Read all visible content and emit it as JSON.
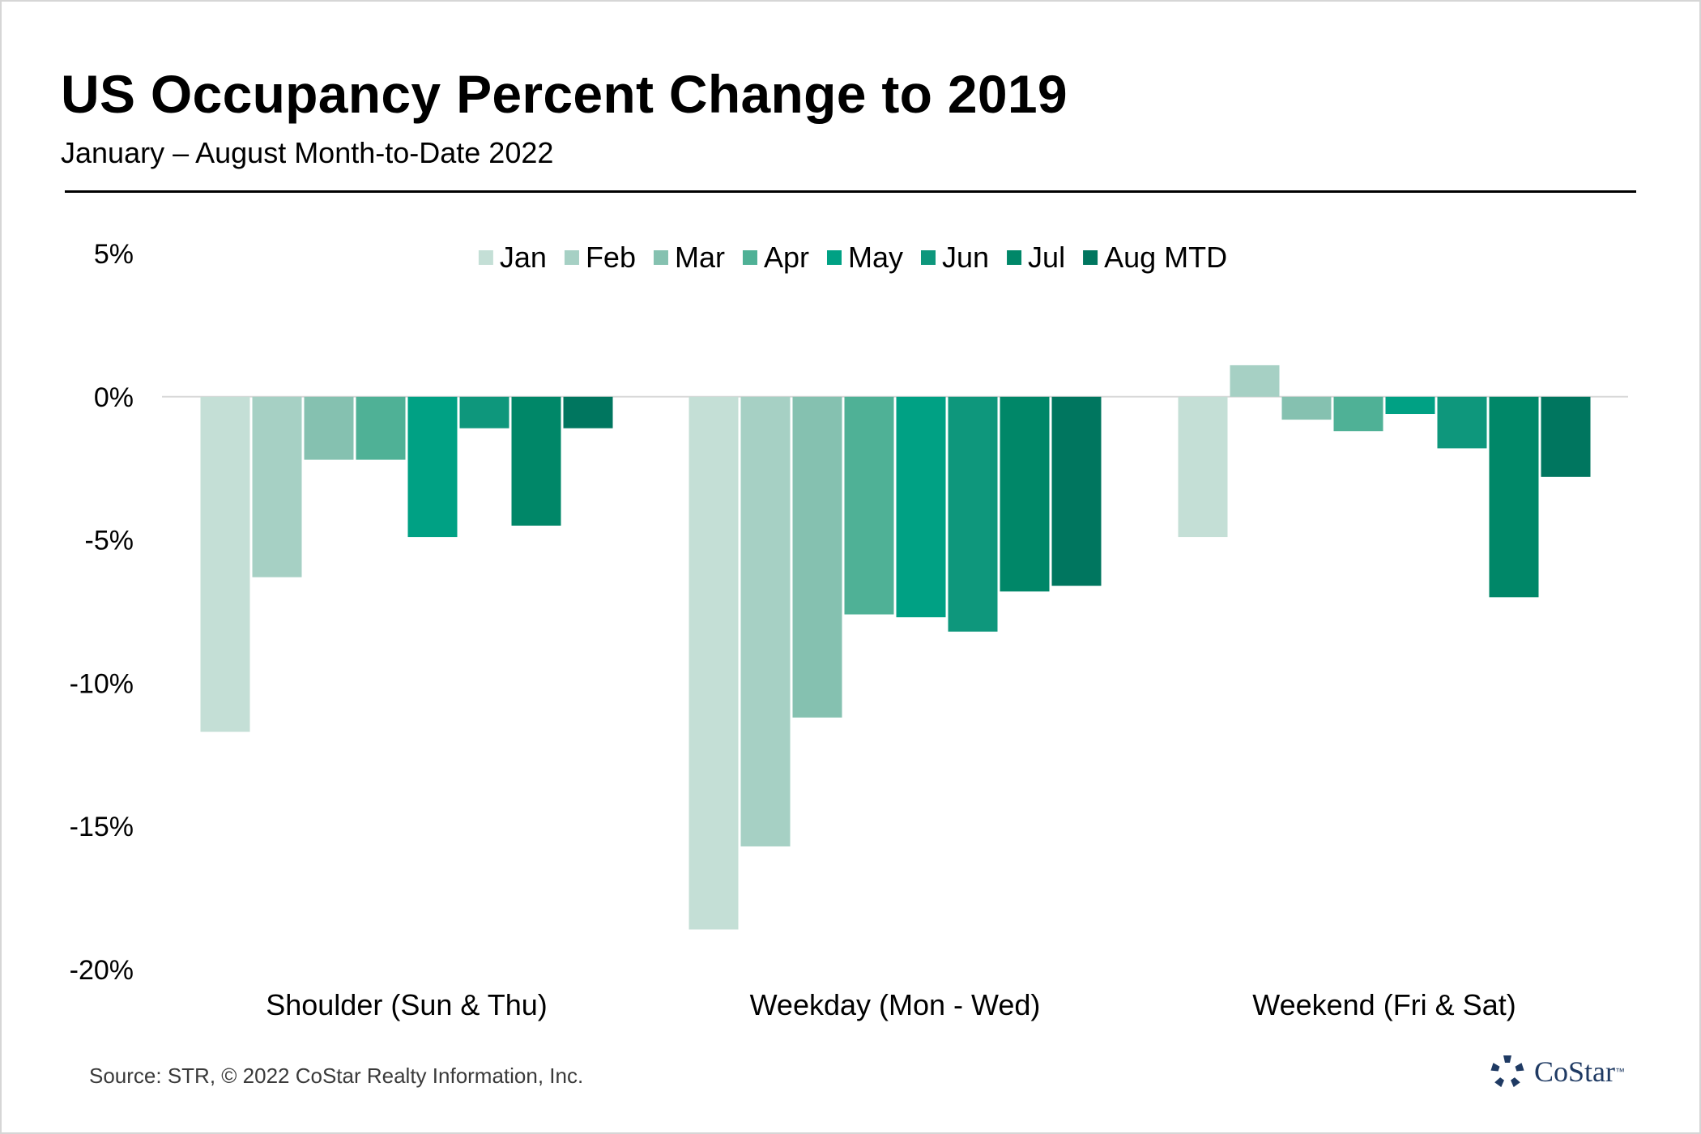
{
  "header": {
    "title": "US Occupancy Percent Change to 2019",
    "subtitle": "January – August Month-to-Date 2022"
  },
  "footer": {
    "source": "Source: STR, © 2022  CoStar Realty Information, Inc.",
    "logo_text": "CoStar",
    "logo_tm": "™",
    "logo_icon": "costar-star-icon"
  },
  "colors": {
    "series": [
      "#c4dfd6",
      "#a6d0c4",
      "#85c1b0",
      "#4fb196",
      "#00a184",
      "#0e977c",
      "#008768",
      "#00765f"
    ],
    "gridline": "#d9d9d9",
    "text": "#000000",
    "logo": "#1f3a63"
  },
  "chart_data": {
    "type": "bar",
    "title": "US Occupancy Percent Change to 2019",
    "subtitle": "January – August Month-to-Date 2022",
    "categories": [
      "Shoulder (Sun & Thu)",
      "Weekday (Mon - Wed)",
      "Weekend (Fri & Sat)"
    ],
    "series": [
      {
        "name": "Jan",
        "values": [
          -11.7,
          -18.6,
          -4.9
        ]
      },
      {
        "name": "Feb",
        "values": [
          -6.3,
          -15.7,
          1.1
        ]
      },
      {
        "name": "Mar",
        "values": [
          -2.2,
          -11.2,
          -0.8
        ]
      },
      {
        "name": "Apr",
        "values": [
          -2.2,
          -7.6,
          -1.2
        ]
      },
      {
        "name": "May",
        "values": [
          -4.9,
          -7.7,
          -0.6
        ]
      },
      {
        "name": "Jun",
        "values": [
          -1.1,
          -8.2,
          -1.8
        ]
      },
      {
        "name": "Jul",
        "values": [
          -4.5,
          -6.8,
          -7.0
        ]
      },
      {
        "name": "Aug MTD",
        "values": [
          -1.1,
          -6.6,
          -2.8
        ]
      }
    ],
    "ylim": [
      -20,
      5
    ],
    "yticks": [
      5,
      0,
      -5,
      -10,
      -15,
      -20
    ],
    "ytick_labels": [
      "5%",
      "0%",
      "-5%",
      "-10%",
      "-15%",
      "-20%"
    ],
    "xlabel": "",
    "ylabel": "",
    "grid": false,
    "zero_line": true,
    "legend_position": "top-center"
  }
}
